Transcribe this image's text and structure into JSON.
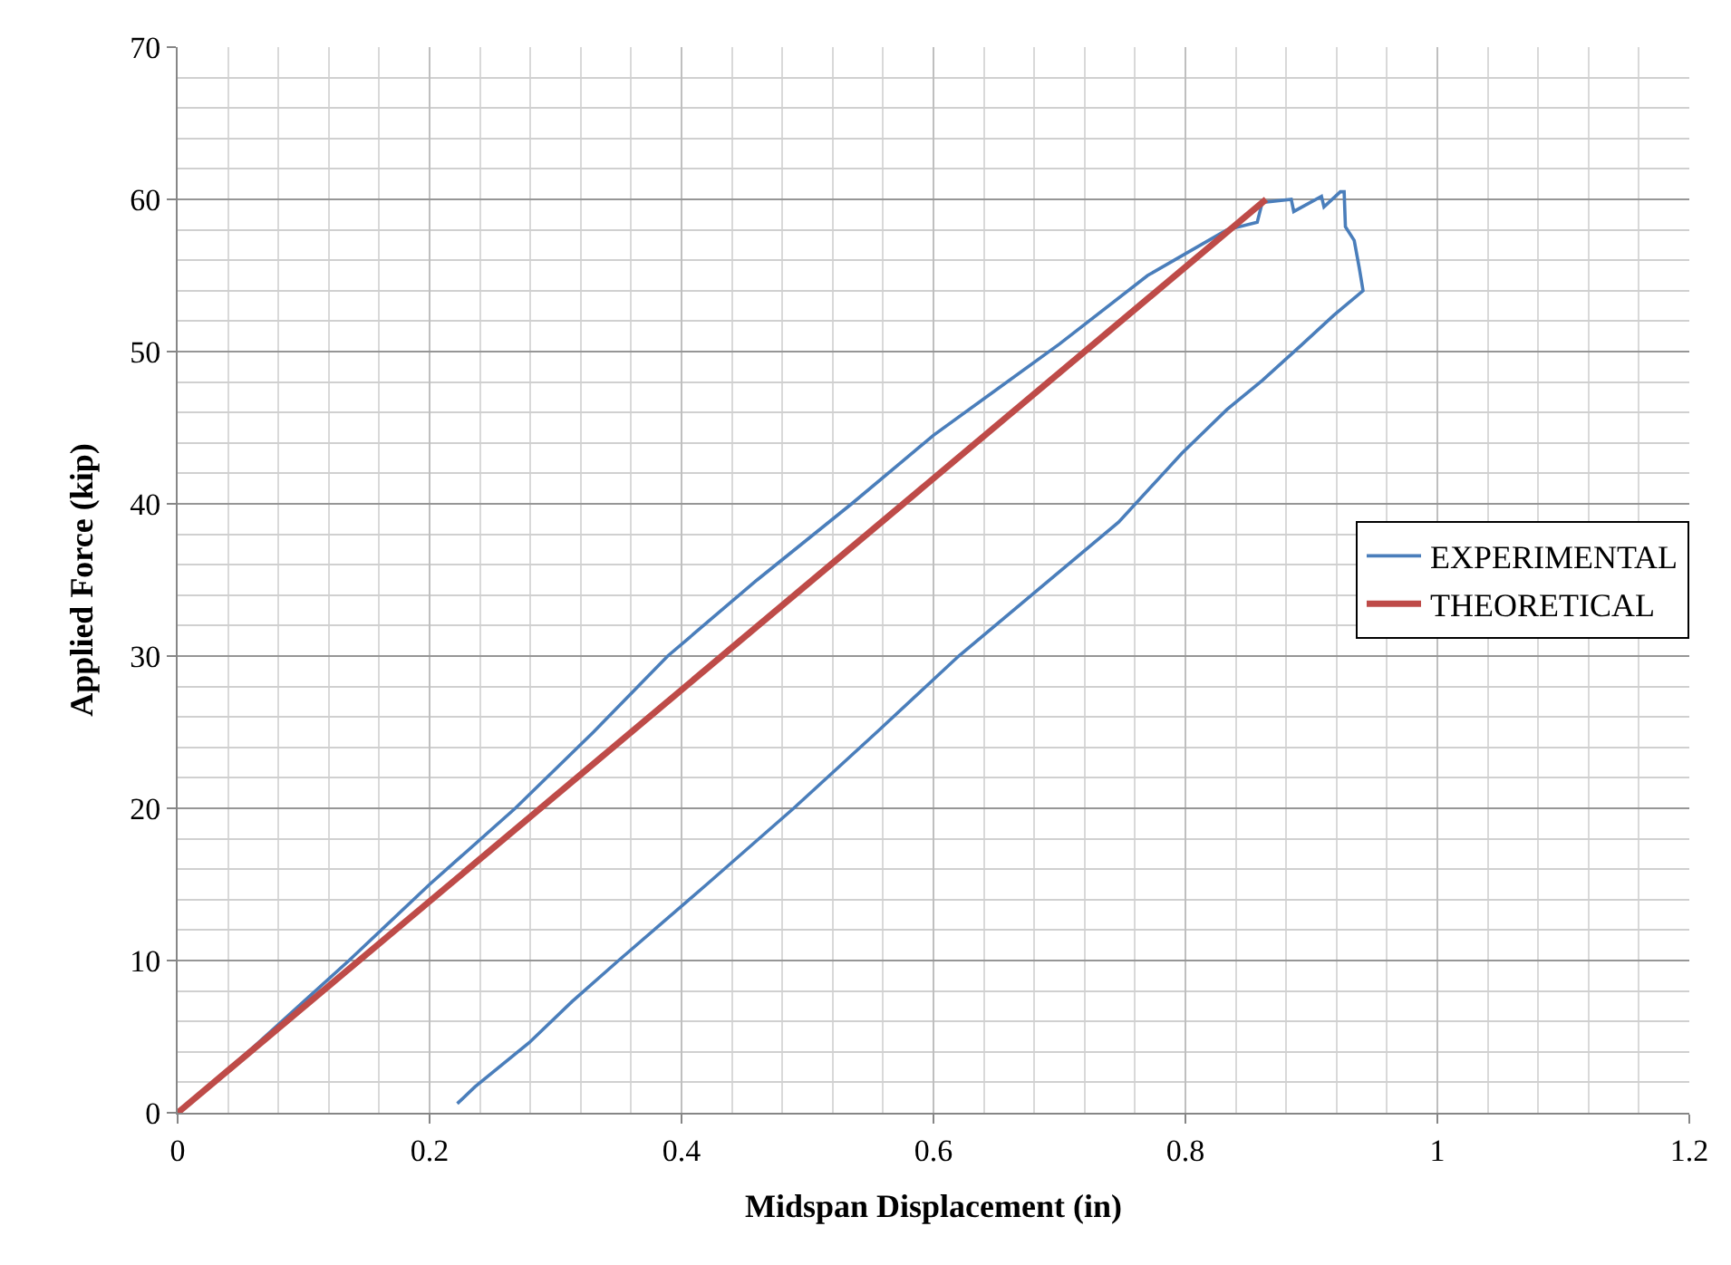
{
  "chart_data": {
    "type": "line",
    "xlabel": "Midspan Displacement (in)",
    "ylabel": "Applied Force (kip)",
    "xlim": [
      0,
      1.2
    ],
    "xticks": [
      0,
      0.2,
      0.4,
      0.6,
      0.8,
      1,
      1.2
    ],
    "ylim": [
      0,
      70
    ],
    "yticks": [
      0,
      10,
      20,
      30,
      40,
      50,
      60,
      70
    ],
    "grid": true,
    "legend": "right",
    "marker": "none",
    "line_style": "solid",
    "series": [
      {
        "name": "EXPERIMENTAL",
        "color": "#4a7ebb",
        "x": [
          0,
          0.06,
          0.1,
          0.136,
          0.2,
          0.268,
          0.33,
          0.389,
          0.46,
          0.535,
          0.6,
          0.65,
          0.7,
          0.77,
          0.833,
          0.857,
          0.861,
          0.884,
          0.886,
          0.908,
          0.91,
          0.923,
          0.926,
          0.927,
          0.934,
          0.938,
          0.941,
          0.918,
          0.893,
          0.861,
          0.833,
          0.797,
          0.747,
          0.62,
          0.555,
          0.489,
          0.42,
          0.35,
          0.313,
          0.279,
          0.236,
          0.222
        ],
        "values": [
          0,
          4.3,
          7.3,
          10,
          15,
          20,
          25,
          30,
          35,
          40,
          44.5,
          47.5,
          50.5,
          55,
          58,
          58.5,
          59.8,
          60,
          59.2,
          60.2,
          59.5,
          60.5,
          60.5,
          58.2,
          57.3,
          55.5,
          54,
          52.4,
          50.5,
          48.1,
          46.2,
          43.3,
          38.8,
          30,
          25,
          20,
          15,
          10,
          7.3,
          4.6,
          1.7,
          0.6
        ]
      },
      {
        "name": "THEORETICAL",
        "color": "#be4b48",
        "x": [
          0,
          0.864
        ],
        "values": [
          0,
          60
        ]
      }
    ]
  }
}
